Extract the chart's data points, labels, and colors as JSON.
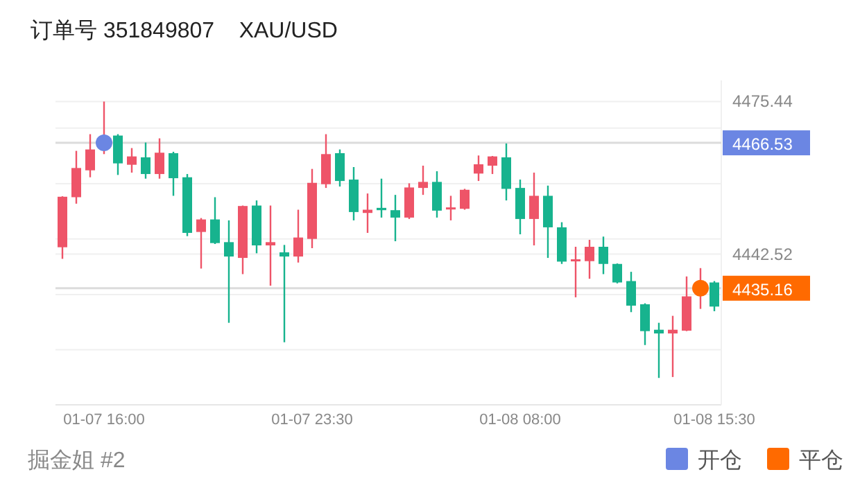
{
  "chart_data": {
    "type": "candlestick",
    "title": "订单号 351849807    XAU/USD",
    "categories": [
      null,
      null,
      null,
      "01-07 16:00",
      null,
      null,
      null,
      null,
      null,
      null,
      null,
      null,
      null,
      null,
      null,
      null,
      null,
      null,
      "01-07 23:30",
      null,
      null,
      null,
      null,
      null,
      null,
      null,
      null,
      null,
      null,
      null,
      null,
      null,
      null,
      "01-08 08:00",
      null,
      null,
      null,
      null,
      null,
      null,
      null,
      null,
      null,
      null,
      null,
      null,
      null,
      "01-08 15:30"
    ],
    "ohlc": [
      [
        4444.0,
        4455.0,
        4441.5,
        4454.9
      ],
      [
        4454.8,
        4464.8,
        4453.4,
        4461.1
      ],
      [
        4460.6,
        4468.4,
        4459.1,
        4465.1
      ],
      [
        4465.6,
        4475.44,
        4464.1,
        4467.6
      ],
      [
        4468.1,
        4468.4,
        4459.6,
        4462.1
      ],
      [
        4461.8,
        4465.4,
        4460.1,
        4463.6
      ],
      [
        4463.4,
        4466.6,
        4458.8,
        4459.8
      ],
      [
        4459.8,
        4467.5,
        4458.8,
        4464.4
      ],
      [
        4464.3,
        4464.6,
        4455.1,
        4458.9
      ],
      [
        4459.1,
        4459.8,
        4446.4,
        4447.1
      ],
      [
        4447.3,
        4450.3,
        4439.4,
        4450.0
      ],
      [
        4450.0,
        4454.8,
        4444.7,
        4444.9
      ],
      [
        4445.1,
        4449.8,
        4427.7,
        4442.0
      ],
      [
        4441.7,
        4453.0,
        4438.2,
        4452.9
      ],
      [
        4453.0,
        4454.1,
        4442.7,
        4444.4
      ],
      [
        4444.4,
        4453.0,
        4435.7,
        4445.1
      ],
      [
        4442.9,
        4444.5,
        4423.5,
        4442.0
      ],
      [
        4442.0,
        4452.1,
        4440.7,
        4446.1
      ],
      [
        4445.8,
        4460.9,
        4443.8,
        4457.9
      ],
      [
        4457.6,
        4468.4,
        4456.8,
        4464.1
      ],
      [
        4464.3,
        4465.1,
        4457.1,
        4458.3
      ],
      [
        4458.6,
        4461.3,
        4449.8,
        4451.6
      ],
      [
        4451.4,
        4455.6,
        4447.1,
        4452.1
      ],
      [
        4452.5,
        4458.8,
        4450.4,
        4452.0
      ],
      [
        4452.0,
        4455.3,
        4445.3,
        4450.4
      ],
      [
        4450.4,
        4457.8,
        4450.1,
        4456.9
      ],
      [
        4456.8,
        4461.6,
        4455.3,
        4458.1
      ],
      [
        4458.1,
        4460.4,
        4450.4,
        4451.9
      ],
      [
        4452.3,
        4455.1,
        4449.8,
        4452.6
      ],
      [
        4452.3,
        4456.6,
        4452.1,
        4456.4
      ],
      [
        4459.9,
        4463.8,
        4458.3,
        4461.9
      ],
      [
        4461.6,
        4463.7,
        4459.8,
        4463.6
      ],
      [
        4463.4,
        4466.4,
        4454.1,
        4456.6
      ],
      [
        4456.8,
        4458.6,
        4446.8,
        4450.1
      ],
      [
        4450.1,
        4460.1,
        4444.4,
        4455.1
      ],
      [
        4455.1,
        4457.3,
        4441.7,
        4448.3
      ],
      [
        4448.3,
        4449.4,
        4440.4,
        4440.9
      ],
      [
        4441.0,
        4444.1,
        4433.2,
        4441.4
      ],
      [
        4441.0,
        4445.6,
        4437.2,
        4444.1
      ],
      [
        4444.1,
        4446.3,
        4438.2,
        4440.4
      ],
      [
        4440.4,
        4440.5,
        4436.2,
        4436.4
      ],
      [
        4436.7,
        4438.7,
        4430.0,
        4431.4
      ],
      [
        4431.7,
        4431.9,
        4422.9,
        4425.9
      ],
      [
        4426.2,
        4427.7,
        4415.8,
        4425.4
      ],
      [
        4425.4,
        4429.2,
        4416.0,
        4426.2
      ],
      [
        4426.0,
        4437.7,
        4425.9,
        4433.4
      ],
      [
        4433.7,
        4439.5,
        4430.7,
        4436.2
      ],
      [
        4436.4,
        4436.7,
        4430.2,
        4431.2
      ]
    ],
    "colors": [
      "#ee5468",
      "#ee5468",
      "#ee5468",
      "#ee5468",
      "#17b38e",
      "#ee5468",
      "#17b38e",
      "#ee5468",
      "#17b38e",
      "#17b38e",
      "#ee5468",
      "#17b38e",
      "#17b38e",
      "#ee5468",
      "#17b38e",
      "#ee5468",
      "#17b38e",
      "#ee5468",
      "#ee5468",
      "#ee5468",
      "#17b38e",
      "#17b38e",
      "#ee5468",
      "#17b38e",
      "#17b38e",
      "#ee5468",
      "#ee5468",
      "#17b38e",
      "#ee5468",
      "#ee5468",
      "#ee5468",
      "#ee5468",
      "#17b38e",
      "#17b38e",
      "#ee5468",
      "#17b38e",
      "#17b38e",
      "#ee5468",
      "#ee5468",
      "#17b38e",
      "#17b38e",
      "#17b38e",
      "#17b38e",
      "#17b38e",
      "#ee5468",
      "#ee5468",
      "#ee5468",
      "#17b38e"
    ],
    "series": [
      {
        "name": "开仓",
        "type": "scatter",
        "color": "#6b86e3",
        "values": [
          null,
          null,
          null,
          4466.53,
          null,
          null,
          null,
          null,
          null,
          null,
          null,
          null,
          null,
          null,
          null,
          null,
          null,
          null,
          null,
          null,
          null,
          null,
          null,
          null,
          null,
          null,
          null,
          null,
          null,
          null,
          null,
          null,
          null,
          null,
          null,
          null,
          null,
          null,
          null,
          null,
          null,
          null,
          null,
          null,
          null,
          null,
          null,
          null
        ]
      },
      {
        "name": "平仓",
        "type": "scatter",
        "color": "#ff6a00",
        "values": [
          null,
          null,
          null,
          null,
          null,
          null,
          null,
          null,
          null,
          null,
          null,
          null,
          null,
          null,
          null,
          null,
          null,
          null,
          null,
          null,
          null,
          null,
          null,
          null,
          null,
          null,
          null,
          null,
          null,
          null,
          null,
          null,
          null,
          null,
          null,
          null,
          null,
          null,
          null,
          null,
          null,
          null,
          null,
          null,
          null,
          null,
          4435.16,
          null
        ]
      }
    ],
    "ylim": [
      4410,
      4480
    ],
    "yticks": [
      4475.44,
      {
        "value": 4469.7,
        "label": null
      },
      {
        "value": 4457.7,
        "label": null
      },
      {
        "value": 4445.8,
        "label": null
      },
      4442.52,
      {
        "value": 4433.8,
        "label": null
      },
      {
        "value": 4421.9,
        "label": null
      }
    ],
    "grid": "y",
    "ref_lines": [
      {
        "axis": "y",
        "value": 4466.53,
        "label": "4466.53"
      },
      {
        "axis": "y",
        "value": 4435.16,
        "label": "4435.16"
      }
    ],
    "legend": "bottom right",
    "annotations": [
      "掘金姐 #2"
    ]
  }
}
